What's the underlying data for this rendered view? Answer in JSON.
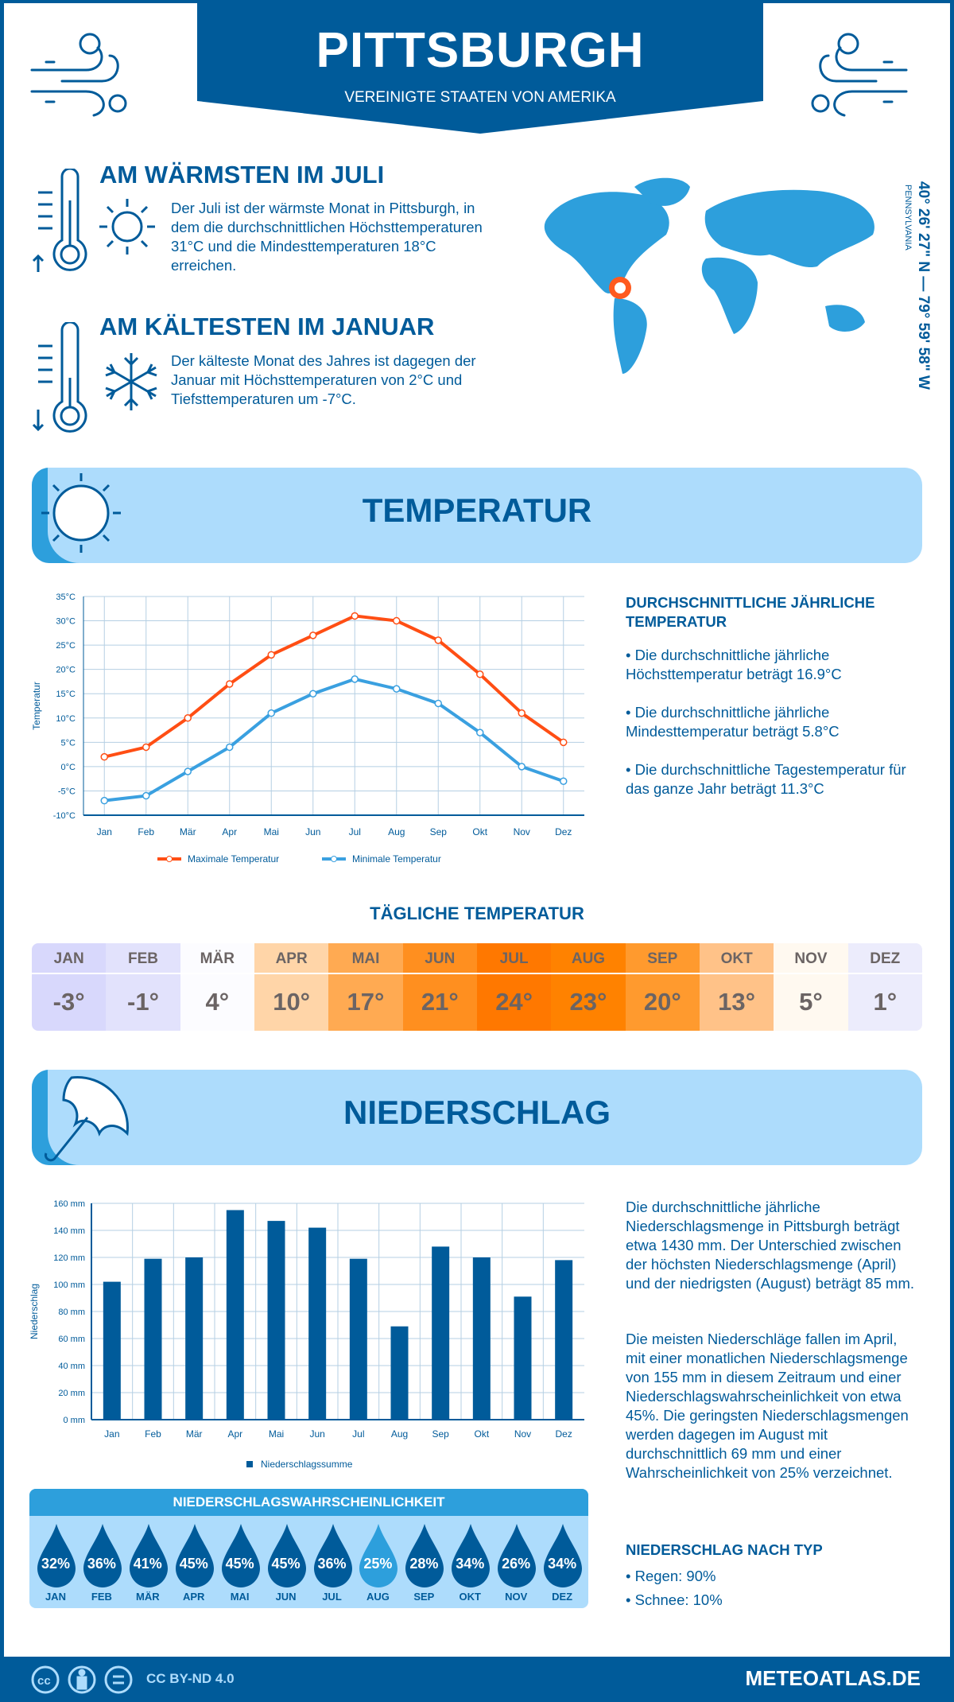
{
  "header": {
    "title": "PITTSBURGH",
    "subtitle": "VEREINIGTE STAATEN VON AMERIKA"
  },
  "coords": {
    "text": "40° 26' 27\" N — 79° 59' 58\" W",
    "region": "PENNSYLVANIA"
  },
  "warmest": {
    "heading": "AM WÄRMSTEN IM JULI",
    "text": "Der Juli ist der wärmste Monat in Pittsburgh, in dem die durchschnittlichen Höchsttemperaturen 31°C und die Mindesttemperaturen 18°C erreichen."
  },
  "coldest": {
    "heading": "AM KÄLTESTEN IM JANUAR",
    "text": "Der kälteste Monat des Jahres ist dagegen der Januar mit Höchsttemperaturen von 2°C und Tiefsttemperaturen um -7°C."
  },
  "temperature_section": {
    "title": "TEMPERATUR",
    "annual_heading": "DURCHSCHNITTLICHE JÄHRLICHE TEMPERATUR",
    "bullets": [
      "• Die durchschnittliche jährliche Höchsttemperatur beträgt 16.9°C",
      "• Die durchschnittliche jährliche Mindesttemperatur beträgt 5.8°C",
      "• Die durchschnittliche Tagestemperatur für das ganze Jahr beträgt 11.3°C"
    ]
  },
  "daily": {
    "title": "TÄGLICHE TEMPERATUR",
    "months": [
      {
        "m": "JAN",
        "v": "-3°",
        "c": "#d8d8fc"
      },
      {
        "m": "FEB",
        "v": "-1°",
        "c": "#e2e2fc"
      },
      {
        "m": "MÄR",
        "v": "4°",
        "c": "#fcfcff"
      },
      {
        "m": "APR",
        "v": "10°",
        "c": "#ffd5a8"
      },
      {
        "m": "MAI",
        "v": "17°",
        "c": "#ffaa52"
      },
      {
        "m": "JUN",
        "v": "21°",
        "c": "#ff8f1f"
      },
      {
        "m": "JUL",
        "v": "24°",
        "c": "#ff7800"
      },
      {
        "m": "AUG",
        "v": "23°",
        "c": "#ff8200"
      },
      {
        "m": "SEP",
        "v": "20°",
        "c": "#ff9a2e"
      },
      {
        "m": "OKT",
        "v": "13°",
        "c": "#ffc288"
      },
      {
        "m": "NOV",
        "v": "5°",
        "c": "#fff9f0"
      },
      {
        "m": "DEZ",
        "v": "1°",
        "c": "#ececfc"
      }
    ]
  },
  "precip_section": {
    "title": "NIEDERSCHLAG",
    "text1": "Die durchschnittliche jährliche Niederschlagsmenge in Pittsburgh beträgt etwa 1430 mm. Der Unterschied zwischen der höchsten Niederschlagsmenge (April) und der niedrigsten (August) beträgt 85 mm.",
    "text2": "Die meisten Niederschläge fallen im April, mit einer monatlichen Niederschlagsmenge von 155 mm in diesem Zeitraum und einer Niederschlagswahrscheinlichkeit von etwa 45%. Die geringsten Niederschlagsmengen werden dagegen im August mit durchschnittlich 69 mm und einer Wahrscheinlichkeit von 25% verzeichnet.",
    "type_heading": "NIEDERSCHLAG NACH TYP",
    "types": [
      "• Regen: 90%",
      "• Schnee: 10%"
    ]
  },
  "probability": {
    "title": "NIEDERSCHLAGSWAHRSCHEINLICHKEIT",
    "items": [
      {
        "m": "JAN",
        "p": "32%"
      },
      {
        "m": "FEB",
        "p": "36%"
      },
      {
        "m": "MÄR",
        "p": "41%"
      },
      {
        "m": "APR",
        "p": "45%"
      },
      {
        "m": "MAI",
        "p": "45%"
      },
      {
        "m": "JUN",
        "p": "45%"
      },
      {
        "m": "JUL",
        "p": "36%"
      },
      {
        "m": "AUG",
        "p": "25%",
        "highlight": true
      },
      {
        "m": "SEP",
        "p": "28%"
      },
      {
        "m": "OKT",
        "p": "34%"
      },
      {
        "m": "NOV",
        "p": "26%"
      },
      {
        "m": "DEZ",
        "p": "34%"
      }
    ]
  },
  "footer": {
    "license": "CC BY-ND 4.0",
    "site": "METEOATLAS.DE"
  },
  "colors": {
    "dark": "#005b9a",
    "mid": "#2d9fdc",
    "light": "#addcfc",
    "max": "#ff4e14",
    "min": "#3aa0e0"
  },
  "chart_data": [
    {
      "type": "line",
      "categories": [
        "Jan",
        "Feb",
        "Mär",
        "Apr",
        "Mai",
        "Jun",
        "Jul",
        "Aug",
        "Sep",
        "Okt",
        "Nov",
        "Dez"
      ],
      "series": [
        {
          "name": "Maximale Temperatur",
          "values": [
            2,
            4,
            10,
            17,
            23,
            27,
            31,
            30,
            26,
            19,
            11,
            5
          ]
        },
        {
          "name": "Minimale Temperatur",
          "values": [
            -7,
            -6,
            -1,
            4,
            11,
            15,
            18,
            16,
            13,
            7,
            0,
            -3
          ]
        }
      ],
      "ylabel": "Temperatur",
      "ylim": [
        -10,
        35
      ],
      "yticks": [
        "-10°C",
        "-5°C",
        "0°C",
        "5°C",
        "10°C",
        "15°C",
        "20°C",
        "25°C",
        "30°C",
        "35°C"
      ],
      "grid": true,
      "legend": "bottom"
    },
    {
      "type": "bar",
      "categories": [
        "Jan",
        "Feb",
        "Mär",
        "Apr",
        "Mai",
        "Jun",
        "Jul",
        "Aug",
        "Sep",
        "Okt",
        "Nov",
        "Dez"
      ],
      "series": [
        {
          "name": "Niederschlagssumme",
          "values": [
            102,
            119,
            120,
            155,
            147,
            142,
            119,
            69,
            128,
            120,
            91,
            118
          ]
        }
      ],
      "ylabel": "Niederschlag",
      "ylim": [
        0,
        160
      ],
      "yticks": [
        "0 mm",
        "20 mm",
        "40 mm",
        "60 mm",
        "80 mm",
        "100 mm",
        "120 mm",
        "140 mm",
        "160 mm"
      ],
      "grid": true,
      "legend": "bottom"
    }
  ]
}
